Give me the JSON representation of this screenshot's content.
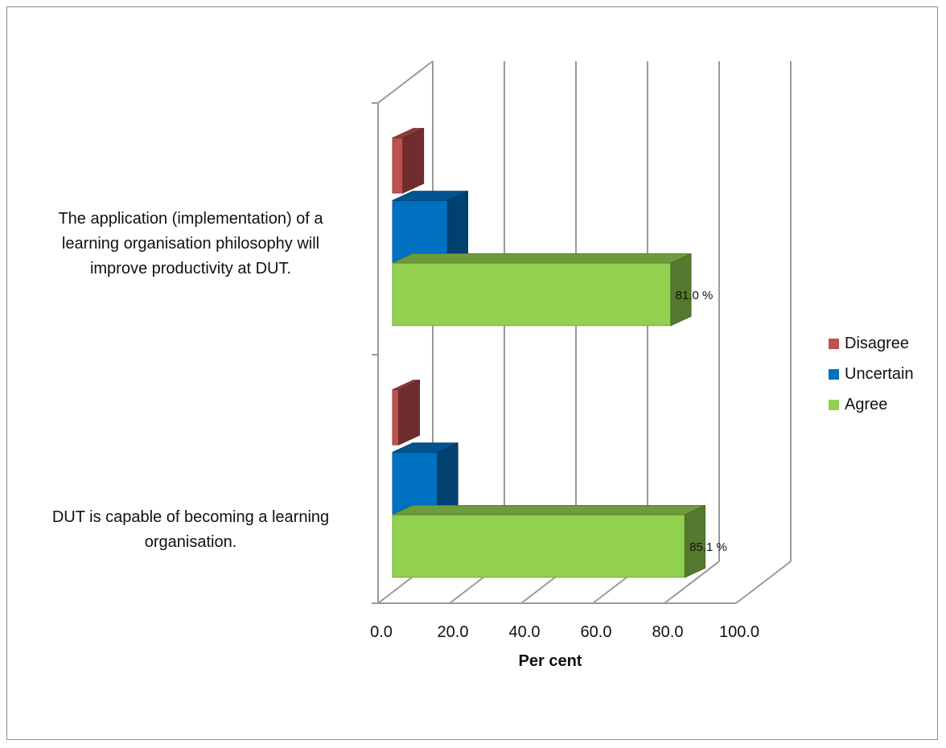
{
  "chart_data": {
    "type": "bar",
    "orientation": "horizontal",
    "style": "3d",
    "categories": [
      "The application (implementation) of a learning organisation philosophy will improve productivity at DUT.",
      "DUT is capable of becoming a learning organisation."
    ],
    "category_lines": [
      [
        "The application (implementation) of a",
        "learning organisation philosophy will",
        "improve productivity at DUT."
      ],
      [
        "DUT is capable of becoming a learning",
        "organisation."
      ]
    ],
    "series": [
      {
        "name": "Disagree",
        "color": "#c0504d",
        "values": [
          3.0,
          1.8
        ]
      },
      {
        "name": "Uncertain",
        "color": "#0070c0",
        "values": [
          16.0,
          13.1
        ]
      },
      {
        "name": "Agree",
        "color": "#92d050",
        "values": [
          81.0,
          85.1
        ]
      }
    ],
    "data_labels": [
      "81.0 %",
      "85.1 %"
    ],
    "xlabel": "Per cent",
    "xlim": [
      0,
      100
    ],
    "xticks": [
      "0.0",
      "20.0",
      "40.0",
      "60.0",
      "80.0",
      "100.0"
    ],
    "grid": true,
    "legend": "right"
  }
}
